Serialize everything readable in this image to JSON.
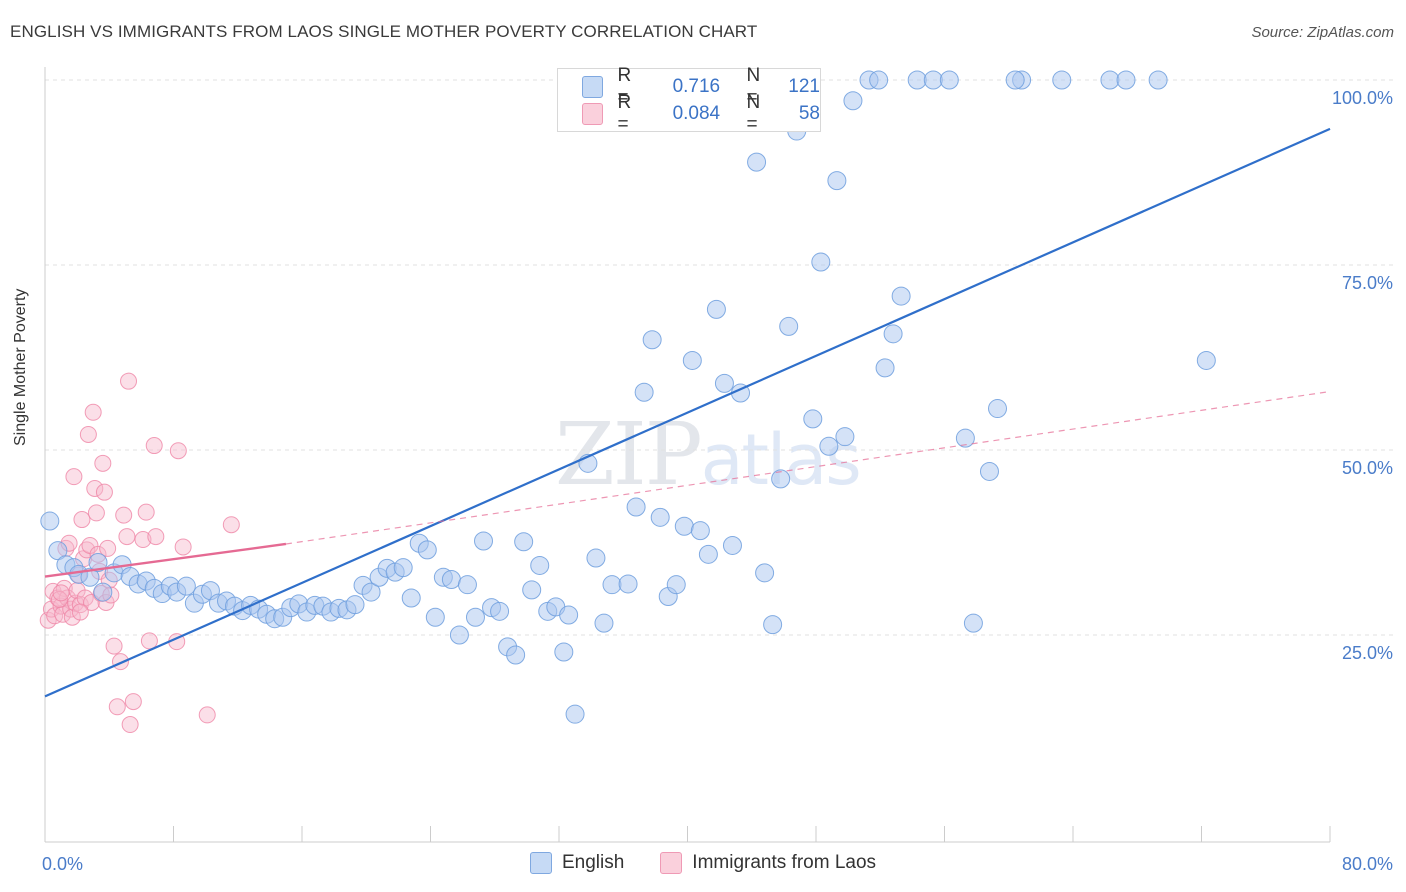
{
  "title": "ENGLISH VS IMMIGRANTS FROM LAOS SINGLE MOTHER POVERTY CORRELATION CHART",
  "source": "Source: ZipAtlas.com",
  "watermark": {
    "a": "ZIP",
    "b": "atlas"
  },
  "legend": {
    "rows": [
      {
        "r_key": "R =",
        "r_val": "0.716",
        "n_key": "N =",
        "n_val": "121",
        "color": "#a9c6ef"
      },
      {
        "r_key": "R =",
        "r_val": "0.084",
        "n_key": "N =",
        "n_val": "58",
        "color": "#f6b8cb"
      }
    ],
    "bottom": [
      "English",
      "Immigrants from Laos"
    ]
  },
  "chart_data": {
    "type": "scatter",
    "ylabel": "Single Mother Poverty",
    "x_tick_labels": [
      "0.0%",
      "80.0%"
    ],
    "y_tick_labels": [
      "25.0%",
      "50.0%",
      "75.0%",
      "100.0%"
    ],
    "xlim": [
      0,
      80
    ],
    "ylim": [
      0,
      105
    ],
    "colors": {
      "english": "#6f9fde",
      "english_fill": "#a9c6ef",
      "laos": "#ef86a6",
      "laos_fill": "#f6b8cb",
      "english_line": "#2f6fca",
      "laos_line": "#e56a93"
    },
    "series": [
      {
        "name": "English",
        "trend": {
          "x": [
            0,
            80
          ],
          "y": [
            16.7,
            93.4
          ]
        },
        "points": [
          [
            0.3,
            40.4
          ],
          [
            0.8,
            36.4
          ],
          [
            1.3,
            34.5
          ],
          [
            1.8,
            34.1
          ],
          [
            2.1,
            33.2
          ],
          [
            2.8,
            32.8
          ],
          [
            3.3,
            34.8
          ],
          [
            3.6,
            30.8
          ],
          [
            4.3,
            33.4
          ],
          [
            4.8,
            34.5
          ],
          [
            5.3,
            32.9
          ],
          [
            5.8,
            31.9
          ],
          [
            6.3,
            32.3
          ],
          [
            6.8,
            31.3
          ],
          [
            7.3,
            30.6
          ],
          [
            7.8,
            31.6
          ],
          [
            8.2,
            30.8
          ],
          [
            8.8,
            31.6
          ],
          [
            9.3,
            29.3
          ],
          [
            9.8,
            30.5
          ],
          [
            10.3,
            31.0
          ],
          [
            10.8,
            29.3
          ],
          [
            11.3,
            29.6
          ],
          [
            11.8,
            28.9
          ],
          [
            12.3,
            28.3
          ],
          [
            12.8,
            29.0
          ],
          [
            13.3,
            28.5
          ],
          [
            13.8,
            27.8
          ],
          [
            14.3,
            27.2
          ],
          [
            14.8,
            27.4
          ],
          [
            15.3,
            28.7
          ],
          [
            15.8,
            29.2
          ],
          [
            16.3,
            28.1
          ],
          [
            16.8,
            29.0
          ],
          [
            17.3,
            28.9
          ],
          [
            17.8,
            28.1
          ],
          [
            18.3,
            28.6
          ],
          [
            18.8,
            28.4
          ],
          [
            19.3,
            29.1
          ],
          [
            19.8,
            31.7
          ],
          [
            20.3,
            30.8
          ],
          [
            20.8,
            32.8
          ],
          [
            21.3,
            34.0
          ],
          [
            21.8,
            33.5
          ],
          [
            22.3,
            34.1
          ],
          [
            22.8,
            30.0
          ],
          [
            23.3,
            37.4
          ],
          [
            23.8,
            36.5
          ],
          [
            24.3,
            27.4
          ],
          [
            24.8,
            32.8
          ],
          [
            25.3,
            32.5
          ],
          [
            25.8,
            25.0
          ],
          [
            26.3,
            31.8
          ],
          [
            26.8,
            27.4
          ],
          [
            27.3,
            37.7
          ],
          [
            27.8,
            28.7
          ],
          [
            28.3,
            28.2
          ],
          [
            28.8,
            23.4
          ],
          [
            29.3,
            22.3
          ],
          [
            29.8,
            37.6
          ],
          [
            30.3,
            31.1
          ],
          [
            30.8,
            34.4
          ],
          [
            31.3,
            28.2
          ],
          [
            31.8,
            28.8
          ],
          [
            32.3,
            22.7
          ],
          [
            32.6,
            27.7
          ],
          [
            33.0,
            14.3
          ],
          [
            33.8,
            48.2
          ],
          [
            34.3,
            35.4
          ],
          [
            34.8,
            26.6
          ],
          [
            35.3,
            31.8
          ],
          [
            36.3,
            31.9
          ],
          [
            36.8,
            42.3
          ],
          [
            37.3,
            57.8
          ],
          [
            37.8,
            64.9
          ],
          [
            38.3,
            40.9
          ],
          [
            38.8,
            30.2
          ],
          [
            39.3,
            31.8
          ],
          [
            39.8,
            39.7
          ],
          [
            40.3,
            62.1
          ],
          [
            40.8,
            39.1
          ],
          [
            41.3,
            35.9
          ],
          [
            41.8,
            69.0
          ],
          [
            42.3,
            59.0
          ],
          [
            42.8,
            37.1
          ],
          [
            43.3,
            57.7
          ],
          [
            44.3,
            88.9
          ],
          [
            44.8,
            33.4
          ],
          [
            45.3,
            26.4
          ],
          [
            45.8,
            46.1
          ],
          [
            46.3,
            66.7
          ],
          [
            46.8,
            93.1
          ],
          [
            47.3,
            100.0
          ],
          [
            47.8,
            54.2
          ],
          [
            48.3,
            75.4
          ],
          [
            48.8,
            50.5
          ],
          [
            49.3,
            86.4
          ],
          [
            49.8,
            51.8
          ],
          [
            50.3,
            97.2
          ],
          [
            51.3,
            100.0
          ],
          [
            52.3,
            61.1
          ],
          [
            52.8,
            65.7
          ],
          [
            53.3,
            70.8
          ],
          [
            54.3,
            100.0
          ],
          [
            55.3,
            100.0
          ],
          [
            56.3,
            100.0
          ],
          [
            57.3,
            51.6
          ],
          [
            57.8,
            26.6
          ],
          [
            58.8,
            47.1
          ],
          [
            59.3,
            55.6
          ],
          [
            60.8,
            100.0
          ],
          [
            63.3,
            100.0
          ],
          [
            66.3,
            100.0
          ],
          [
            67.3,
            100.0
          ],
          [
            69.3,
            100.0
          ],
          [
            72.3,
            62.1
          ],
          [
            43.6,
            100.0
          ],
          [
            43.2,
            100.0
          ],
          [
            51.9,
            100.0
          ],
          [
            60.4,
            100.0
          ],
          [
            42.9,
            100.0
          ]
        ]
      },
      {
        "name": "Immigrants from Laos",
        "trend_solid": {
          "x": [
            0,
            15
          ],
          "y": [
            32.9,
            37.3
          ]
        },
        "trend_dashed": {
          "x": [
            15,
            80
          ],
          "y": [
            37.3,
            57.9
          ]
        },
        "points": [
          [
            0.2,
            27.0
          ],
          [
            0.4,
            28.5
          ],
          [
            0.5,
            30.9
          ],
          [
            0.6,
            27.6
          ],
          [
            0.8,
            30.0
          ],
          [
            1.0,
            28.9
          ],
          [
            1.1,
            27.8
          ],
          [
            1.2,
            31.3
          ],
          [
            1.3,
            36.7
          ],
          [
            1.4,
            30.0
          ],
          [
            1.5,
            37.4
          ],
          [
            1.6,
            28.5
          ],
          [
            1.7,
            27.4
          ],
          [
            1.8,
            46.4
          ],
          [
            1.9,
            29.3
          ],
          [
            2.0,
            31.0
          ],
          [
            2.1,
            33.1
          ],
          [
            2.2,
            29.1
          ],
          [
            2.3,
            40.6
          ],
          [
            2.4,
            35.3
          ],
          [
            2.5,
            30.0
          ],
          [
            2.6,
            36.5
          ],
          [
            2.7,
            52.1
          ],
          [
            2.8,
            37.1
          ],
          [
            2.9,
            29.4
          ],
          [
            3.0,
            55.1
          ],
          [
            3.1,
            44.8
          ],
          [
            3.2,
            41.5
          ],
          [
            3.3,
            35.9
          ],
          [
            3.4,
            33.6
          ],
          [
            3.5,
            30.6
          ],
          [
            3.6,
            48.2
          ],
          [
            3.7,
            44.3
          ],
          [
            3.8,
            29.4
          ],
          [
            3.9,
            36.7
          ],
          [
            4.0,
            32.4
          ],
          [
            4.1,
            30.4
          ],
          [
            4.3,
            23.5
          ],
          [
            4.5,
            15.3
          ],
          [
            4.7,
            21.4
          ],
          [
            4.9,
            41.2
          ],
          [
            5.1,
            38.3
          ],
          [
            5.3,
            12.9
          ],
          [
            5.5,
            16.0
          ],
          [
            5.2,
            59.3
          ],
          [
            6.1,
            37.9
          ],
          [
            6.3,
            41.6
          ],
          [
            6.5,
            24.2
          ],
          [
            6.8,
            50.6
          ],
          [
            6.9,
            38.3
          ],
          [
            8.3,
            49.9
          ],
          [
            8.6,
            36.9
          ],
          [
            8.2,
            24.1
          ],
          [
            10.1,
            14.2
          ],
          [
            11.6,
            39.9
          ],
          [
            0.9,
            29.8
          ],
          [
            2.2,
            28.1
          ],
          [
            1.0,
            30.7
          ]
        ]
      }
    ]
  }
}
